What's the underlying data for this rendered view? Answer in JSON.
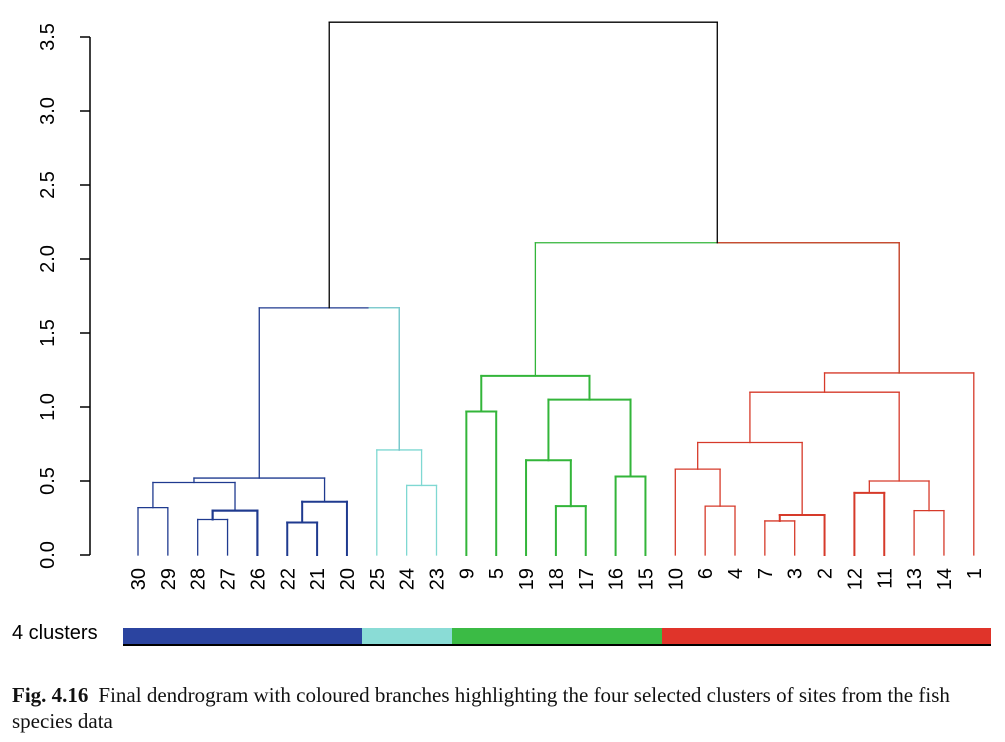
{
  "chart_data": {
    "type": "dendrogram",
    "y_ticks": [
      "0.0",
      "0.5",
      "1.0",
      "1.5",
      "2.0",
      "2.5",
      "3.0",
      "3.5"
    ],
    "ylim": [
      0,
      3.6
    ],
    "leaves": [
      "30",
      "29",
      "28",
      "27",
      "26",
      "22",
      "21",
      "20",
      "25",
      "24",
      "23",
      "9",
      "5",
      "19",
      "18",
      "17",
      "16",
      "15",
      "10",
      "6",
      "4",
      "7",
      "3",
      "2",
      "12",
      "11",
      "13",
      "14",
      "1"
    ],
    "merges": [
      {
        "a": "30",
        "b": "29",
        "h": 0.32
      },
      {
        "a": "28",
        "b": "27",
        "h": 0.24
      },
      {
        "a": "22",
        "b": "21",
        "h": 0.22
      },
      {
        "a": "25",
        "b": "24",
        "h": 0.0
      },
      {
        "a": "24",
        "b": "23",
        "h": 0.47
      },
      {
        "a": "9",
        "b": "5",
        "h": 0.97
      },
      {
        "a": "18",
        "b": "17",
        "h": 0.33
      },
      {
        "a": "16",
        "b": "15",
        "h": 0.53
      },
      {
        "a": "6",
        "b": "4",
        "h": 0.33
      },
      {
        "a": "7",
        "b": "3",
        "h": 0.23
      },
      {
        "a": "12",
        "b": "11",
        "h": 0.42
      },
      {
        "a": "13",
        "b": "14",
        "h": 0.3
      }
    ],
    "colors": {
      "blue": "#1f3a8f",
      "cyan": "#7fd8d2",
      "green": "#33b53a",
      "red": "#d63a2a"
    },
    "clusters": {
      "label": "4 clusters",
      "segments": [
        {
          "color": "#2b44a0",
          "count": 8
        },
        {
          "color": "#8adcd6",
          "count": 3
        },
        {
          "color": "#3bbb45",
          "count": 7
        },
        {
          "color": "#e0342a",
          "count": 11
        }
      ]
    }
  },
  "caption": {
    "figure_number": "Fig. 4.16",
    "text": "Final dendrogram with coloured branches highlighting the four selected clusters of sites from the fish species data"
  }
}
